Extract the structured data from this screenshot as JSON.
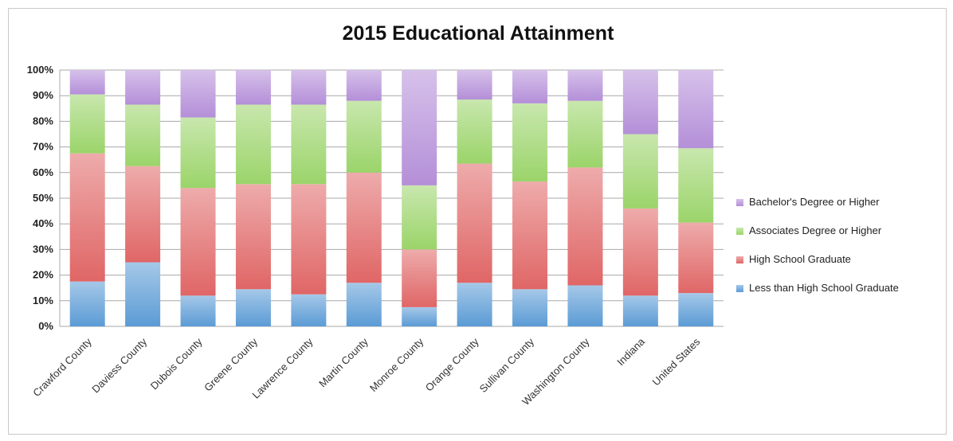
{
  "chart_data": {
    "type": "bar",
    "stacked": true,
    "percent": true,
    "title": "2015 Educational Attainment",
    "xlabel": "",
    "ylabel": "",
    "ylim": [
      0,
      100
    ],
    "yticks": [
      "0%",
      "10%",
      "20%",
      "30%",
      "40%",
      "50%",
      "60%",
      "70%",
      "80%",
      "90%",
      "100%"
    ],
    "grid": true,
    "legend_position": "right",
    "categories": [
      "Crawford County",
      "Daviess County",
      "Dubois County",
      "Greene County",
      "Lawrence County",
      "Martin County",
      "Monroe County",
      "Orange County",
      "Sullivan County",
      "Washington County",
      "Indiana",
      "United States"
    ],
    "series": [
      {
        "name": "Less than High School Graduate",
        "color": "#5b9bd5",
        "values": [
          17.5,
          25,
          12,
          14.5,
          12.5,
          17,
          7.5,
          17,
          14.5,
          16,
          12,
          13
        ]
      },
      {
        "name": "High School Graduate",
        "color": "#e06666",
        "values": [
          50,
          37.5,
          42,
          41,
          43,
          43,
          22.5,
          46.5,
          42,
          46,
          34,
          27.5
        ]
      },
      {
        "name": "Associates Degree or Higher",
        "color": "#9bd46a",
        "values": [
          23,
          24,
          27.5,
          31,
          31,
          28,
          25,
          25,
          30.5,
          26,
          29,
          29
        ]
      },
      {
        "name": "Bachelor's Degree or Higher",
        "color": "#b48fd8",
        "values": [
          9.5,
          13.5,
          18.5,
          13.5,
          13.5,
          12,
          45,
          11.5,
          13,
          12,
          25,
          30.5
        ]
      }
    ]
  }
}
